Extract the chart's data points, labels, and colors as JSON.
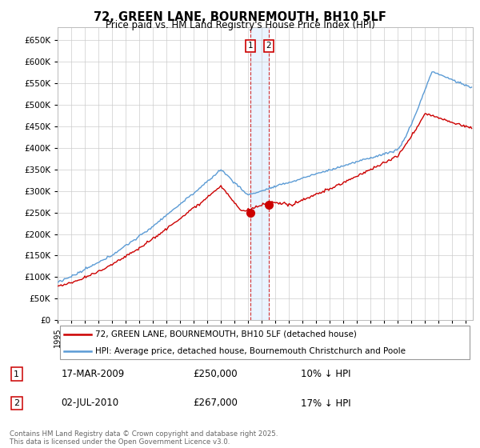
{
  "title": "72, GREEN LANE, BOURNEMOUTH, BH10 5LF",
  "subtitle": "Price paid vs. HM Land Registry's House Price Index (HPI)",
  "legend_line1": "72, GREEN LANE, BOURNEMOUTH, BH10 5LF (detached house)",
  "legend_line2": "HPI: Average price, detached house, Bournemouth Christchurch and Poole",
  "transaction1_date": "17-MAR-2009",
  "transaction1_price": "£250,000",
  "transaction1_hpi": "10% ↓ HPI",
  "transaction2_date": "02-JUL-2010",
  "transaction2_price": "£267,000",
  "transaction2_hpi": "17% ↓ HPI",
  "footer": "Contains HM Land Registry data © Crown copyright and database right 2025.\nThis data is licensed under the Open Government Licence v3.0.",
  "hpi_color": "#5b9bd5",
  "price_color": "#cc0000",
  "vline_color": "#cc0000",
  "shade_color": "#ddeeff",
  "background_color": "#ffffff",
  "grid_color": "#cccccc",
  "t1_year_val": 2009.167,
  "t2_year_val": 2010.5,
  "t1_price": 250000,
  "t2_price": 267000,
  "ylim_min": 0,
  "ylim_max": 680000,
  "xmin": 1995,
  "xmax": 2025.5
}
